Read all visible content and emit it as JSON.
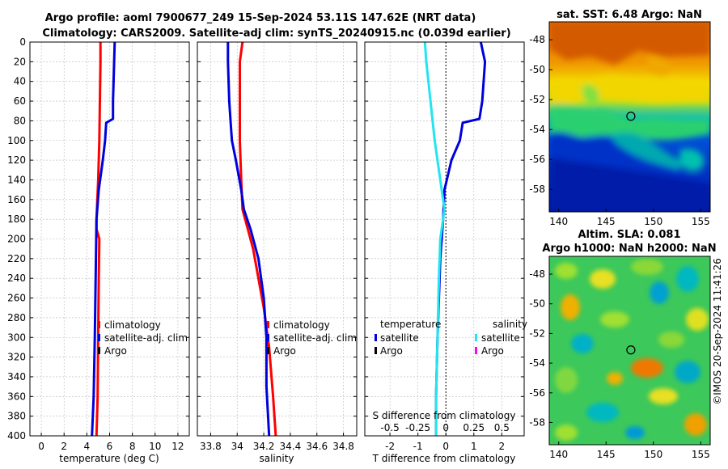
{
  "title_line1": "Argo profile: aoml 7900677_249 15-Sep-2024 53.11S 147.62E (NRT data)",
  "title_line2": "Climatology: CARS2009. Satellite-adj clim: synTS_20240915.nc (0.039d earlier)",
  "copyright": "©IMOS 20-Sep-2024 11:41:26",
  "colors": {
    "climatology": "#ff0000",
    "satellite": "#0000dd",
    "argo": "#000000",
    "sat_salinity": "#22e5f0",
    "argo_salinity": "#ff00ff"
  },
  "chart_data": [
    {
      "id": "temperature",
      "type": "line",
      "xlabel": "temperature (deg C)",
      "ylabel": "",
      "xlim": [
        -1,
        13
      ],
      "ylim": [
        400,
        0
      ],
      "xticks": [
        0,
        2,
        4,
        6,
        8,
        10,
        12
      ],
      "yticks": [
        0,
        20,
        40,
        60,
        80,
        100,
        120,
        140,
        160,
        180,
        200,
        220,
        240,
        260,
        280,
        300,
        320,
        340,
        360,
        380,
        400
      ],
      "grid": true,
      "series": [
        {
          "name": "climatology",
          "color": "#ff0000",
          "points": [
            [
              5.2,
              0
            ],
            [
              5.2,
              20
            ],
            [
              5.15,
              60
            ],
            [
              5.1,
              100
            ],
            [
              5.0,
              140
            ],
            [
              4.85,
              180
            ],
            [
              4.85,
              190
            ],
            [
              5.1,
              200
            ],
            [
              5.05,
              240
            ],
            [
              5.0,
              300
            ],
            [
              4.95,
              360
            ],
            [
              4.85,
              400
            ]
          ]
        },
        {
          "name": "satellite-adj. clim",
          "color": "#0000dd",
          "points": [
            [
              6.45,
              0
            ],
            [
              6.4,
              20
            ],
            [
              6.3,
              60
            ],
            [
              6.3,
              78
            ],
            [
              5.7,
              82
            ],
            [
              5.6,
              100
            ],
            [
              5.4,
              120
            ],
            [
              5.05,
              150
            ],
            [
              4.85,
              180
            ],
            [
              4.8,
              220
            ],
            [
              4.75,
              260
            ],
            [
              4.7,
              300
            ],
            [
              4.6,
              360
            ],
            [
              4.45,
              400
            ]
          ]
        },
        {
          "name": "Argo",
          "color": "#000000",
          "points": []
        }
      ],
      "legend": {
        "entries": [
          "climatology",
          "satellite-adj. clim",
          "Argo"
        ],
        "position": "bottom-right"
      }
    },
    {
      "id": "salinity",
      "type": "line",
      "xlabel": "salinity",
      "ylabel": "",
      "xlim": [
        33.7,
        34.9
      ],
      "ylim": [
        400,
        0
      ],
      "xticks": [
        33.8,
        34,
        34.2,
        34.4,
        34.6,
        34.8
      ],
      "xticklabels": [
        "33.8",
        "34",
        "34.2",
        "34.4",
        "34.6",
        "34.8"
      ],
      "grid": true,
      "series": [
        {
          "name": "climatology",
          "color": "#ff0000",
          "points": [
            [
              34.04,
              0
            ],
            [
              34.02,
              20
            ],
            [
              34.02,
              60
            ],
            [
              34.02,
              100
            ],
            [
              34.03,
              140
            ],
            [
              34.04,
              170
            ],
            [
              34.08,
              190
            ],
            [
              34.12,
              210
            ],
            [
              34.16,
              240
            ],
            [
              34.2,
              270
            ],
            [
              34.24,
              310
            ],
            [
              34.27,
              360
            ],
            [
              34.29,
              400
            ]
          ]
        },
        {
          "name": "satellite-adj. clim",
          "color": "#0000dd",
          "points": [
            [
              33.93,
              0
            ],
            [
              33.93,
              20
            ],
            [
              33.94,
              60
            ],
            [
              33.95,
              80
            ],
            [
              33.96,
              100
            ],
            [
              33.99,
              120
            ],
            [
              34.03,
              150
            ],
            [
              34.05,
              170
            ],
            [
              34.1,
              190
            ],
            [
              34.16,
              220
            ],
            [
              34.2,
              260
            ],
            [
              34.22,
              300
            ],
            [
              34.22,
              350
            ],
            [
              34.24,
              400
            ]
          ]
        },
        {
          "name": "Argo",
          "color": "#000000",
          "points": []
        }
      ],
      "legend": {
        "entries": [
          "climatology",
          "satellite-adj. clim",
          "Argo"
        ],
        "position": "bottom-right"
      }
    },
    {
      "id": "difference",
      "type": "line",
      "xlabel": "T difference from climatology",
      "xlabel_top": "S difference from climatology",
      "xlim": [
        -2.9,
        2.8
      ],
      "ylim": [
        400,
        0
      ],
      "xticks": [
        -2,
        -1,
        0,
        1,
        2
      ],
      "top_ticks": [
        -0.5,
        -0.25,
        0,
        0.25,
        0.5
      ],
      "top_ticklabels": [
        "-0.5",
        "-0.25",
        "0",
        "0.25",
        "0.5"
      ],
      "top_scale_per_T": 0.25,
      "grid": true,
      "series": [
        {
          "name": "satellite temperature",
          "color": "#0000dd",
          "points": [
            [
              1.25,
              0
            ],
            [
              1.4,
              20
            ],
            [
              1.3,
              60
            ],
            [
              1.2,
              78
            ],
            [
              0.6,
              82
            ],
            [
              0.5,
              100
            ],
            [
              0.2,
              120
            ],
            [
              -0.05,
              150
            ],
            [
              -0.1,
              180
            ],
            [
              -0.2,
              220
            ],
            [
              -0.3,
              300
            ],
            [
              -0.35,
              360
            ],
            [
              -0.35,
              400
            ]
          ]
        },
        {
          "name": "satellite salinity",
          "color": "#22e5f0",
          "points": [
            [
              -0.75,
              0
            ],
            [
              -0.7,
              20
            ],
            [
              -0.55,
              60
            ],
            [
              -0.4,
              100
            ],
            [
              -0.2,
              140
            ],
            [
              -0.05,
              170
            ],
            [
              -0.2,
              200
            ],
            [
              -0.25,
              240
            ],
            [
              -0.3,
              300
            ],
            [
              -0.35,
              360
            ],
            [
              -0.35,
              400
            ]
          ]
        }
      ],
      "legend": {
        "temperature_header": "temperature",
        "salinity_header": "salinity",
        "temperature_entries": [
          "satellite",
          "Argo"
        ],
        "salinity_entries": [
          "satellite",
          "Argo"
        ]
      }
    },
    {
      "id": "sst_map",
      "type": "heatmap",
      "title": "sat. SST: 6.48 Argo: NaN",
      "xlim": [
        139,
        156
      ],
      "ylim": [
        -59.5,
        -46.8
      ],
      "xticks": [
        140,
        145,
        150,
        155
      ],
      "yticks": [
        -48,
        -50,
        -52,
        -54,
        -56,
        -58
      ],
      "marker": {
        "lon": 147.62,
        "lat": -53.11
      }
    },
    {
      "id": "sla_map",
      "type": "heatmap",
      "title_line1": "Altim. SLA: 0.081",
      "title_line2": "Argo h1000: NaN h2000: NaN",
      "xlim": [
        139,
        156
      ],
      "ylim": [
        -59.5,
        -46.8
      ],
      "xticks": [
        140,
        145,
        150,
        155
      ],
      "yticks": [
        -48,
        -50,
        -52,
        -54,
        -56,
        -58
      ],
      "marker": {
        "lon": 147.62,
        "lat": -53.11
      }
    }
  ]
}
